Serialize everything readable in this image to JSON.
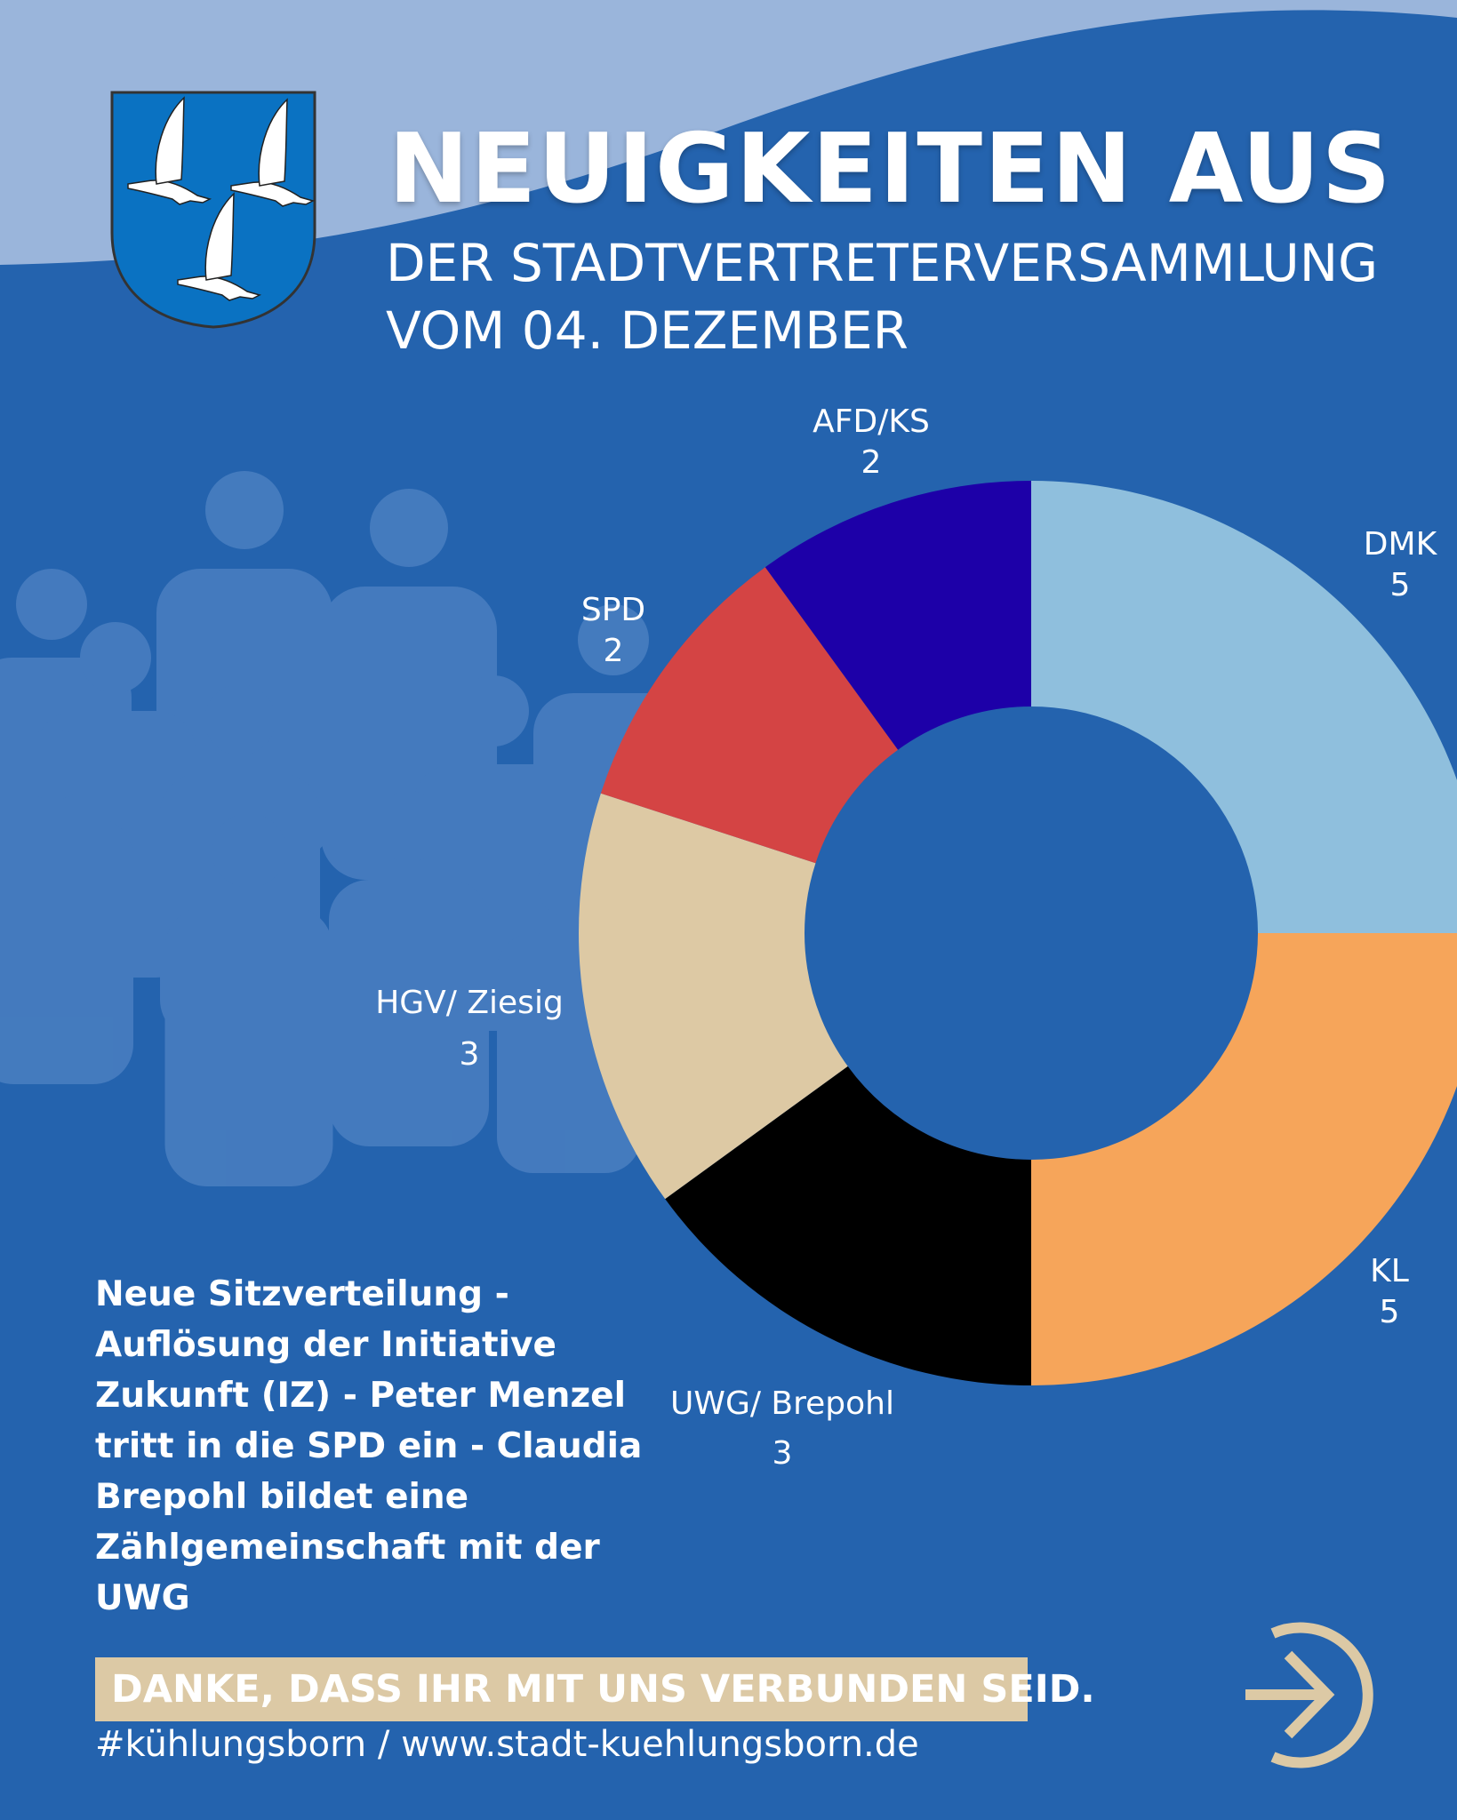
{
  "header": {
    "title": "NEUIGKEITEN AUS",
    "subtitle_line1": "DER STADTVERTRETERVERSAMMLUNG",
    "subtitle_line2": "VOM 04. DEZEMBER",
    "logo": "kuehlungsborn-coat-of-arms-three-seagulls"
  },
  "colors": {
    "background": "#2463ae",
    "wave": "#9ab5db",
    "accent": "#dcc9a5"
  },
  "chart_data": {
    "type": "pie",
    "subtype": "donut",
    "title": "",
    "slices": [
      {
        "name": "DMK",
        "value": 5,
        "color": "#8fbfdd"
      },
      {
        "name": "KL",
        "value": 5,
        "color": "#f6a55a"
      },
      {
        "name": "UWG/ Brepohl",
        "value": 3,
        "color": "#000000"
      },
      {
        "name": "HGV/ Ziesig",
        "value": 3,
        "color": "#ddc9a4"
      },
      {
        "name": "SPD",
        "value": 2,
        "color": "#d44444"
      },
      {
        "name": "AFD/KS",
        "value": 2,
        "color": "#1d00a8"
      }
    ],
    "start": "top",
    "direction": "clockwise"
  },
  "body": {
    "lines": [
      "Neue Sitzverteilung -",
      "Auflösung der Initiative",
      "Zukunft (IZ) - Peter Menzel",
      "tritt in die SPD ein - Claudia",
      "Brepohl bildet eine",
      "Zählgemeinschaft mit der",
      "UWG"
    ]
  },
  "footer": {
    "banner": "DANKE, DASS IHR MIT UNS VERBUNDEN SEID.",
    "tagline": "#kühlungsborn / www.stadt-kuehlungsborn.de",
    "next_icon": "arrow-right-circle-icon"
  }
}
